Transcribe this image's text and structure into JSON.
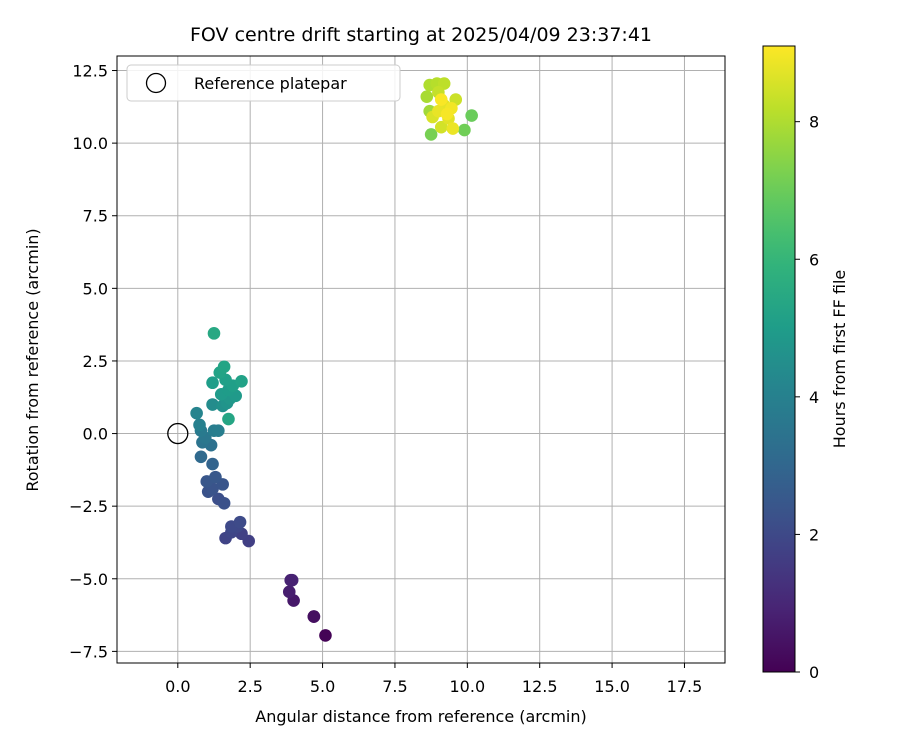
{
  "chart_data": {
    "type": "scatter",
    "title": "FOV centre drift starting at 2025/04/09 23:37:41",
    "xlabel": "Angular distance from reference (arcmin)",
    "ylabel": "Rotation from reference (arcmin)",
    "xlim": [
      -2.1,
      18.9
    ],
    "ylim": [
      -7.9,
      13.0
    ],
    "xticks": [
      0.0,
      2.5,
      5.0,
      7.5,
      10.0,
      12.5,
      15.0,
      17.5
    ],
    "xtick_labels": [
      "0.0",
      "2.5",
      "5.0",
      "7.5",
      "10.0",
      "12.5",
      "15.0",
      "17.5"
    ],
    "yticks": [
      -7.5,
      -5.0,
      -2.5,
      0.0,
      2.5,
      5.0,
      7.5,
      10.0,
      12.5
    ],
    "ytick_labels": [
      "−7.5",
      "−5.0",
      "−2.5",
      "0.0",
      "2.5",
      "5.0",
      "7.5",
      "10.0",
      "12.5"
    ],
    "grid": true,
    "legend": {
      "position": "top-left",
      "entries": [
        "Reference platepar"
      ]
    },
    "reference_point": {
      "name": "Reference platepar",
      "x": 0.0,
      "y": 0.0
    },
    "colorbar": {
      "label": "Hours from first FF file",
      "colormap": "viridis",
      "range": [
        0,
        9.1
      ],
      "ticks": [
        0,
        2,
        4,
        6,
        8
      ],
      "tick_labels": [
        "0",
        "2",
        "4",
        "6",
        "8"
      ]
    },
    "points": [
      {
        "x": 5.1,
        "y": -6.95,
        "c": 0.05
      },
      {
        "x": 4.7,
        "y": -6.3,
        "c": 0.3
      },
      {
        "x": 4.7,
        "y": -6.3,
        "c": 0.35
      },
      {
        "x": 4.0,
        "y": -5.75,
        "c": 0.6
      },
      {
        "x": 3.85,
        "y": -5.45,
        "c": 0.75
      },
      {
        "x": 3.95,
        "y": -5.05,
        "c": 0.9
      },
      {
        "x": 3.9,
        "y": -5.05,
        "c": 0.85
      },
      {
        "x": 2.45,
        "y": -3.7,
        "c": 1.7
      },
      {
        "x": 2.2,
        "y": -3.45,
        "c": 1.75
      },
      {
        "x": 1.65,
        "y": -3.6,
        "c": 1.85
      },
      {
        "x": 1.85,
        "y": -3.4,
        "c": 1.9
      },
      {
        "x": 2.05,
        "y": -3.2,
        "c": 1.95
      },
      {
        "x": 1.85,
        "y": -3.2,
        "c": 2.0
      },
      {
        "x": 2.15,
        "y": -3.05,
        "c": 2.05
      },
      {
        "x": 1.4,
        "y": -2.25,
        "c": 2.2
      },
      {
        "x": 1.6,
        "y": -2.4,
        "c": 2.25
      },
      {
        "x": 1.05,
        "y": -2.0,
        "c": 2.3
      },
      {
        "x": 1.2,
        "y": -1.9,
        "c": 2.35
      },
      {
        "x": 1.55,
        "y": -1.75,
        "c": 2.4
      },
      {
        "x": 1.0,
        "y": -1.65,
        "c": 2.45
      },
      {
        "x": 1.3,
        "y": -1.5,
        "c": 2.5
      },
      {
        "x": 1.2,
        "y": -1.05,
        "c": 2.9
      },
      {
        "x": 0.8,
        "y": -0.8,
        "c": 3.1
      },
      {
        "x": 1.15,
        "y": -0.4,
        "c": 3.4
      },
      {
        "x": 0.85,
        "y": -0.3,
        "c": 3.5
      },
      {
        "x": 0.95,
        "y": -0.15,
        "c": 3.6
      },
      {
        "x": 0.8,
        "y": 0.1,
        "c": 3.75
      },
      {
        "x": 1.25,
        "y": 0.1,
        "c": 3.85
      },
      {
        "x": 1.4,
        "y": 0.1,
        "c": 3.9
      },
      {
        "x": 0.75,
        "y": 0.3,
        "c": 3.95
      },
      {
        "x": 0.65,
        "y": 0.7,
        "c": 4.1
      },
      {
        "x": 1.2,
        "y": 1.0,
        "c": 4.4
      },
      {
        "x": 1.55,
        "y": 0.95,
        "c": 4.6
      },
      {
        "x": 1.7,
        "y": 1.05,
        "c": 4.7
      },
      {
        "x": 1.8,
        "y": 1.2,
        "c": 4.8
      },
      {
        "x": 2.0,
        "y": 1.3,
        "c": 4.9
      },
      {
        "x": 1.5,
        "y": 1.35,
        "c": 4.95
      },
      {
        "x": 1.75,
        "y": 1.5,
        "c": 5.0
      },
      {
        "x": 1.2,
        "y": 1.75,
        "c": 5.05
      },
      {
        "x": 1.9,
        "y": 1.65,
        "c": 5.1
      },
      {
        "x": 1.65,
        "y": 1.85,
        "c": 5.15
      },
      {
        "x": 2.2,
        "y": 1.8,
        "c": 5.2
      },
      {
        "x": 1.45,
        "y": 2.1,
        "c": 5.25
      },
      {
        "x": 1.6,
        "y": 2.3,
        "c": 5.3
      },
      {
        "x": 1.75,
        "y": 0.5,
        "c": 5.35
      },
      {
        "x": 1.25,
        "y": 3.45,
        "c": 5.45
      },
      {
        "x": 8.75,
        "y": 10.3,
        "c": 7.2
      },
      {
        "x": 9.9,
        "y": 10.45,
        "c": 7.1
      },
      {
        "x": 10.15,
        "y": 10.95,
        "c": 7.0
      },
      {
        "x": 8.7,
        "y": 11.1,
        "c": 7.8
      },
      {
        "x": 8.6,
        "y": 11.6,
        "c": 7.9
      },
      {
        "x": 8.7,
        "y": 12.0,
        "c": 8.0
      },
      {
        "x": 8.95,
        "y": 12.05,
        "c": 8.1
      },
      {
        "x": 9.2,
        "y": 12.05,
        "c": 8.2
      },
      {
        "x": 9.0,
        "y": 11.75,
        "c": 8.3
      },
      {
        "x": 9.6,
        "y": 11.5,
        "c": 8.4
      },
      {
        "x": 9.1,
        "y": 10.55,
        "c": 8.5
      },
      {
        "x": 8.8,
        "y": 10.9,
        "c": 8.6
      },
      {
        "x": 9.35,
        "y": 10.85,
        "c": 8.7
      },
      {
        "x": 9.2,
        "y": 11.3,
        "c": 8.75
      },
      {
        "x": 9.0,
        "y": 11.1,
        "c": 8.8
      },
      {
        "x": 9.5,
        "y": 10.5,
        "c": 8.85
      },
      {
        "x": 9.45,
        "y": 11.2,
        "c": 8.95
      },
      {
        "x": 9.3,
        "y": 11.0,
        "c": 9.0
      },
      {
        "x": 9.1,
        "y": 11.5,
        "c": 9.05
      }
    ]
  }
}
